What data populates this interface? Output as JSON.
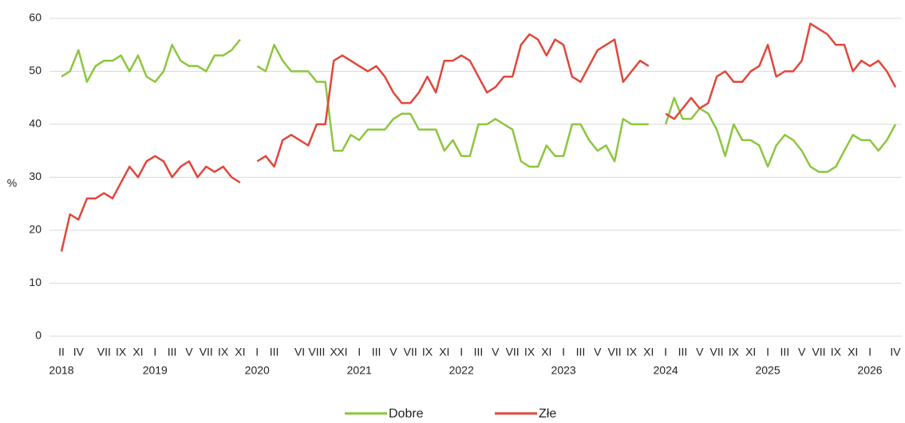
{
  "chart_data": {
    "type": "line",
    "y_label": "%",
    "categories": [
      "II",
      null,
      "IV",
      null,
      null,
      "VII",
      null,
      "IX",
      null,
      "XI",
      null,
      "I",
      null,
      "III",
      null,
      "V",
      null,
      "VII",
      null,
      "IX",
      null,
      "XI",
      null,
      "I",
      null,
      "III",
      null,
      null,
      "VI",
      null,
      "VIII",
      null,
      "X",
      "XI",
      null,
      "I",
      null,
      "III",
      null,
      "V",
      null,
      "VII",
      null,
      "IX",
      null,
      "XI",
      null,
      "I",
      null,
      "III",
      null,
      "V",
      null,
      "VII",
      null,
      "IX",
      null,
      "XI",
      null,
      "I",
      null,
      "III",
      null,
      "V",
      null,
      "VII",
      null,
      "IX",
      null,
      "XI",
      null,
      "I",
      null,
      "III",
      null,
      "V",
      null,
      "VII",
      null,
      "IX",
      null,
      "XI",
      null,
      "I",
      null,
      "III",
      null,
      "V",
      null,
      "VII",
      null,
      "IX",
      null,
      "XI",
      null,
      "I",
      null,
      null,
      "IV"
    ],
    "years": [
      "2018",
      null,
      null,
      null,
      null,
      null,
      null,
      null,
      null,
      null,
      null,
      "2019",
      null,
      null,
      null,
      null,
      null,
      null,
      null,
      null,
      null,
      null,
      null,
      "2020",
      null,
      null,
      null,
      null,
      null,
      null,
      null,
      null,
      null,
      null,
      null,
      "2021",
      null,
      null,
      null,
      null,
      null,
      null,
      null,
      null,
      null,
      null,
      null,
      "2022",
      null,
      null,
      null,
      null,
      null,
      null,
      null,
      null,
      null,
      null,
      null,
      "2023",
      null,
      null,
      null,
      null,
      null,
      null,
      null,
      null,
      null,
      null,
      null,
      "2024",
      null,
      null,
      null,
      null,
      null,
      null,
      null,
      null,
      null,
      null,
      null,
      "2025",
      null,
      null,
      null,
      null,
      null,
      null,
      null,
      null,
      null,
      null,
      null,
      "2026",
      null,
      null,
      null
    ],
    "series": [
      {
        "name": "Dobre",
        "color": "#8cc63e",
        "values": [
          49,
          50,
          54,
          48,
          51,
          52,
          52,
          53,
          50,
          53,
          49,
          48,
          50,
          55,
          52,
          51,
          51,
          50,
          53,
          53,
          54,
          56,
          null,
          51,
          50,
          55,
          52,
          50,
          50,
          50,
          48,
          48,
          35,
          35,
          38,
          37,
          39,
          39,
          39,
          41,
          42,
          42,
          39,
          39,
          39,
          35,
          37,
          34,
          34,
          40,
          40,
          41,
          40,
          39,
          33,
          32,
          32,
          36,
          34,
          34,
          40,
          40,
          37,
          35,
          36,
          33,
          41,
          40,
          40,
          40,
          null,
          40,
          45,
          41,
          41,
          43,
          42,
          39,
          34,
          40,
          37,
          37,
          36,
          32,
          36,
          38,
          37,
          35,
          32,
          31,
          31,
          32,
          35,
          38,
          37,
          37,
          35,
          37,
          40
        ]
      },
      {
        "name": "Złe",
        "color": "#e2463a",
        "values": [
          16,
          23,
          22,
          26,
          26,
          27,
          26,
          29,
          32,
          30,
          33,
          34,
          33,
          30,
          32,
          33,
          30,
          32,
          31,
          32,
          30,
          29,
          null,
          33,
          34,
          32,
          37,
          38,
          37,
          36,
          40,
          40,
          52,
          53,
          52,
          51,
          50,
          51,
          49,
          46,
          44,
          44,
          46,
          49,
          46,
          52,
          52,
          53,
          52,
          49,
          46,
          47,
          49,
          49,
          55,
          57,
          56,
          53,
          56,
          55,
          49,
          48,
          51,
          54,
          55,
          56,
          48,
          50,
          52,
          51,
          null,
          42,
          41,
          43,
          45,
          43,
          44,
          49,
          50,
          48,
          48,
          50,
          51,
          55,
          49,
          50,
          50,
          52,
          59,
          58,
          57,
          55,
          55,
          50,
          52,
          51,
          52,
          50,
          47
        ]
      }
    ],
    "ylim": [
      0,
      60
    ],
    "yticks": [
      0,
      10,
      20,
      30,
      40,
      50,
      60
    ],
    "grid": true,
    "legend": "bottom"
  }
}
